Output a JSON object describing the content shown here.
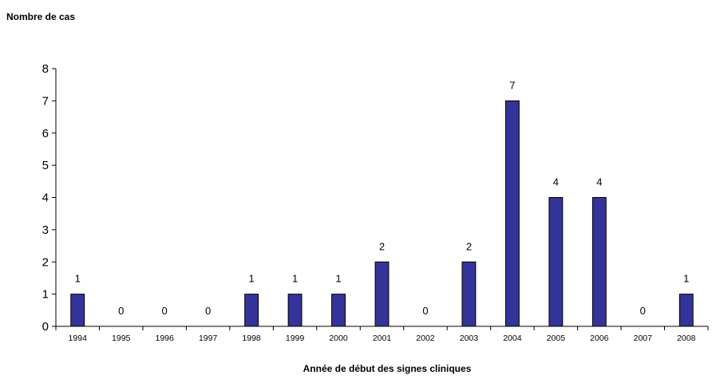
{
  "chart_data": {
    "type": "bar",
    "title": "",
    "ylabel": "Nombre de cas",
    "xlabel": "Année de début des signes cliniques",
    "categories": [
      "1994",
      "1995",
      "1996",
      "1997",
      "1998",
      "1999",
      "2000",
      "2001",
      "2002",
      "2003",
      "2004",
      "2005",
      "2006",
      "2007",
      "2008"
    ],
    "values": [
      1,
      0,
      0,
      0,
      1,
      1,
      1,
      2,
      0,
      2,
      7,
      4,
      4,
      0,
      1
    ],
    "data_labels": [
      "1",
      "0",
      "0",
      "0",
      "1",
      "1",
      "1",
      "2",
      "0",
      "2",
      "7",
      "4",
      "4",
      "0",
      "1"
    ],
    "ylim": [
      0,
      8
    ],
    "yticks": [
      "0",
      "1",
      "2",
      "3",
      "4",
      "5",
      "6",
      "7",
      "8"
    ],
    "grid": false,
    "legend": "none",
    "colors": {
      "bar_fill": "#333399",
      "bar_stroke": "#000000",
      "axis": "#000000"
    }
  }
}
